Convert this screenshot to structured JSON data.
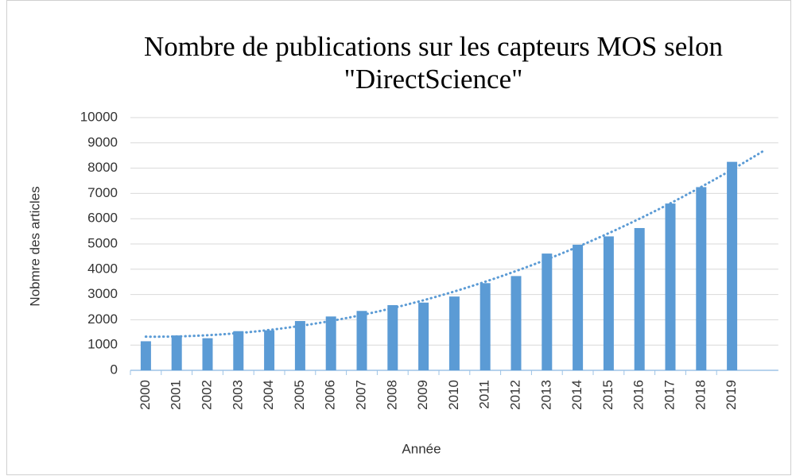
{
  "chart_data": {
    "type": "bar",
    "title": "Nombre de publications sur les capteurs MOS selon \"DirectScience\"",
    "x_label": "Année",
    "y_label": "Nobmre des articles",
    "categories": [
      "2000",
      "2001",
      "2002",
      "2003",
      "2004",
      "2005",
      "2006",
      "2007",
      "2008",
      "2009",
      "2010",
      "2011",
      "2012",
      "2013",
      "2014",
      "2015",
      "2016",
      "2017",
      "2018",
      "2019"
    ],
    "values": [
      1150,
      1380,
      1270,
      1550,
      1580,
      1950,
      2130,
      2350,
      2580,
      2680,
      2920,
      3450,
      3730,
      4620,
      4970,
      5300,
      5630,
      6600,
      7250,
      8250
    ],
    "color": "#5b9bd5",
    "ylim": [
      0,
      10000
    ],
    "yticks": [
      0,
      1000,
      2000,
      3000,
      4000,
      5000,
      6000,
      7000,
      8000,
      9000,
      10000
    ],
    "grid": true,
    "trendline": {
      "type": "polynomial",
      "forward": 1
    }
  }
}
